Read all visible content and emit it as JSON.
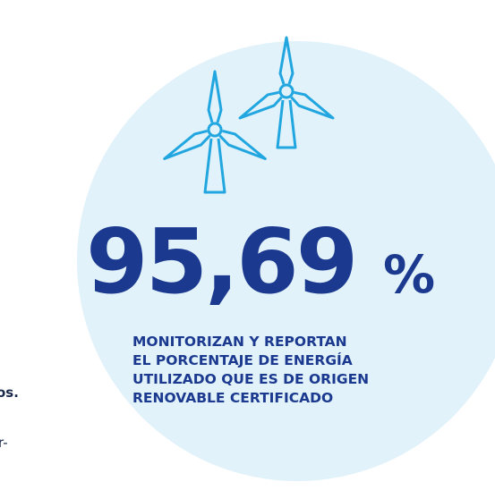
{
  "stat": {
    "value": "95,69",
    "unit": "%"
  },
  "description": [
    "MONITORIZAN Y REPORTAN",
    "EL PORCENTAJE DE ENERGÍA",
    "UTILIZADO QUE ES DE ORIGEN",
    "RENOVABLE CERTIFICADO"
  ],
  "fragments": [
    "os.",
    "r-"
  ]
}
